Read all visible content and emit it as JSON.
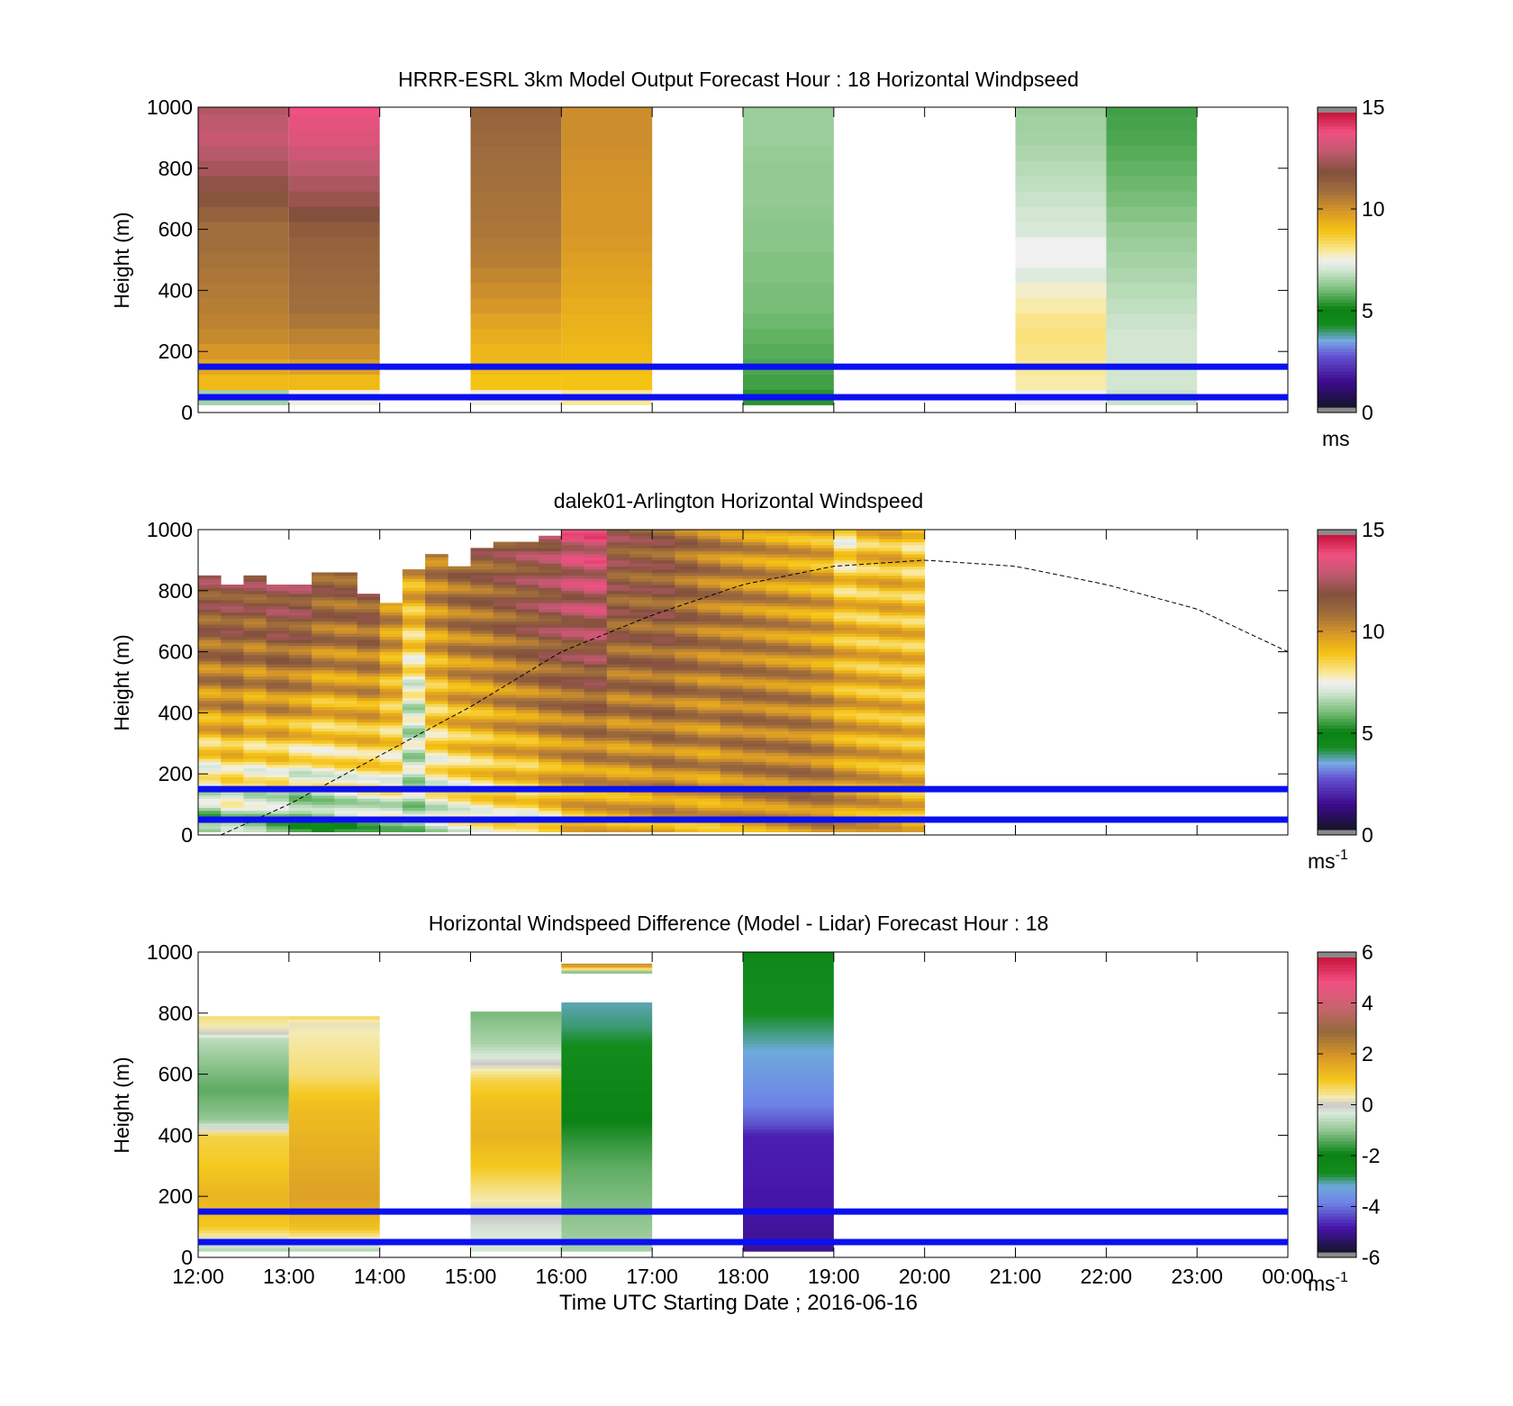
{
  "chart_data": [
    {
      "type": "heatmap",
      "title": "HRRR-ESRL 3km Model Output   Forecast Hour : 18 Horizontal Windpseed",
      "ylabel": "Height (m)",
      "xlabel": "",
      "ylim": [
        0,
        1000
      ],
      "yticks": [
        0,
        200,
        400,
        600,
        800,
        1000
      ],
      "xlim_hours": [
        12,
        24
      ],
      "clim": [
        0,
        15
      ],
      "cticks": [
        0,
        5,
        10,
        15
      ],
      "cbar_unit": "ms",
      "cbar_exp": "",
      "reference_lines_m": [
        150,
        50
      ],
      "columns": [
        {
          "t0": 12,
          "t1": 13,
          "heights": [
            25,
            50,
            75,
            100,
            150,
            200,
            250,
            300,
            350,
            400,
            450,
            500,
            550,
            600,
            700,
            800,
            900,
            1000
          ],
          "values": [
            4.5,
            6.5,
            8.5,
            9.2,
            9.6,
            10.0,
            10.3,
            10.5,
            10.6,
            10.7,
            10.8,
            10.9,
            11.0,
            11.0,
            11.8,
            12.6,
            13.2,
            12.8
          ]
        },
        {
          "t0": 13,
          "t1": 14,
          "heights": [
            25,
            50,
            75,
            100,
            150,
            200,
            250,
            300,
            350,
            400,
            450,
            500,
            550,
            600,
            700,
            800,
            900,
            1000
          ],
          "values": [
            4.5,
            7.6,
            8.6,
            9.2,
            9.8,
            10.2,
            10.5,
            10.8,
            11.0,
            11.1,
            11.2,
            11.3,
            11.4,
            11.6,
            12.4,
            13.0,
            13.6,
            14.0
          ]
        },
        {
          "t0": 15,
          "t1": 16,
          "heights": [
            25,
            50,
            75,
            100,
            150,
            200,
            250,
            300,
            350,
            400,
            450,
            500,
            550,
            600,
            700,
            800,
            900,
            1000
          ],
          "values": [
            7.2,
            7.6,
            8.5,
            9.0,
            9.2,
            9.3,
            9.5,
            9.7,
            10.0,
            10.2,
            10.4,
            10.6,
            10.7,
            10.8,
            10.9,
            11.0,
            11.2,
            11.4
          ]
        },
        {
          "t0": 16,
          "t1": 17,
          "heights": [
            25,
            50,
            75,
            100,
            150,
            200,
            250,
            300,
            350,
            400,
            450,
            500,
            550,
            600,
            700,
            800,
            900,
            1000
          ],
          "values": [
            2.8,
            8.0,
            8.8,
            9.0,
            9.1,
            9.2,
            9.3,
            9.4,
            9.5,
            9.6,
            9.7,
            9.8,
            9.9,
            10.0,
            10.0,
            10.1,
            10.2,
            10.2
          ]
        },
        {
          "t0": 18,
          "t1": 19,
          "heights": [
            25,
            50,
            75,
            100,
            150,
            200,
            250,
            300,
            350,
            400,
            450,
            500,
            550,
            600,
            700,
            800,
            900,
            1000
          ],
          "values": [
            5.2,
            5.3,
            5.4,
            5.5,
            5.6,
            5.7,
            5.8,
            5.9,
            6.0,
            6.0,
            6.1,
            6.1,
            6.2,
            6.2,
            6.3,
            6.3,
            6.4,
            6.4
          ]
        },
        {
          "t0": 21,
          "t1": 22,
          "heights": [
            25,
            50,
            75,
            100,
            150,
            200,
            250,
            300,
            350,
            400,
            450,
            500,
            550,
            600,
            700,
            800,
            900,
            1000
          ],
          "values": [
            7.3,
            7.5,
            7.8,
            7.9,
            8.0,
            8.1,
            8.2,
            8.1,
            7.9,
            7.7,
            7.2,
            7.5,
            7.5,
            7.1,
            6.9,
            6.7,
            6.5,
            6.4
          ]
        },
        {
          "t0": 22,
          "t1": 23,
          "heights": [
            25,
            50,
            75,
            100,
            150,
            200,
            250,
            300,
            350,
            400,
            450,
            500,
            550,
            600,
            700,
            800,
            900,
            1000
          ],
          "values": [
            6.8,
            6.9,
            7.0,
            7.0,
            7.0,
            7.0,
            7.0,
            6.9,
            6.8,
            6.7,
            6.6,
            6.5,
            6.4,
            6.3,
            6.0,
            5.8,
            5.6,
            5.5
          ]
        }
      ]
    },
    {
      "type": "heatmap",
      "title": "dalek01-Arlington  Horizontal Windspeed",
      "ylabel": "Height (m)",
      "xlabel": "",
      "ylim": [
        0,
        1000
      ],
      "yticks": [
        0,
        200,
        400,
        600,
        800,
        1000
      ],
      "xlim_hours": [
        12,
        24
      ],
      "clim": [
        0,
        15
      ],
      "cticks": [
        0,
        5,
        10,
        15
      ],
      "cbar_unit": "ms",
      "cbar_exp": "-1",
      "reference_lines_m": [
        150,
        50
      ],
      "profile_start_hour": 12.0,
      "profile_step_hour": 0.25,
      "profile_top_m": [
        850,
        820,
        850,
        820,
        820,
        860,
        860,
        790,
        760,
        870,
        920,
        880,
        940,
        960,
        960,
        980,
        1000,
        1000,
        1000,
        1000,
        1000,
        1000,
        1000,
        1000,
        1000,
        1000,
        1000,
        1000,
        1000,
        1000,
        1000,
        1000
      ],
      "profile_anchor_heights_m": [
        0,
        150,
        400,
        700,
        1000
      ],
      "profile_anchor_values": [
        [
          5.5,
          7.2,
          9.8,
          11.5,
          12.8
        ],
        [
          6.0,
          7.8,
          10.2,
          11.8,
          12.5
        ],
        [
          5.8,
          7.4,
          9.6,
          11.4,
          13.0
        ],
        [
          5.2,
          7.6,
          10.0,
          12.0,
          12.4
        ],
        [
          4.8,
          7.0,
          9.7,
          11.8,
          12.9
        ],
        [
          4.6,
          7.4,
          9.2,
          11.2,
          12.0
        ],
        [
          5.4,
          7.6,
          9.4,
          11.0,
          12.2
        ],
        [
          5.8,
          7.8,
          9.6,
          11.4,
          12.0
        ],
        [
          6.2,
          7.8,
          9.0,
          10.2,
          11.0
        ],
        [
          6.4,
          6.8,
          7.0,
          9.0,
          10.5
        ],
        [
          7.0,
          7.6,
          8.8,
          10.2,
          11.0
        ],
        [
          7.4,
          8.0,
          9.4,
          10.8,
          11.4
        ],
        [
          7.6,
          8.4,
          9.6,
          11.0,
          11.8
        ],
        [
          7.8,
          8.8,
          10.0,
          11.4,
          12.0
        ],
        [
          7.6,
          8.6,
          10.2,
          11.8,
          12.4
        ],
        [
          8.0,
          9.2,
          10.6,
          12.2,
          12.6
        ],
        [
          9.0,
          9.6,
          10.8,
          12.6,
          13.4
        ],
        [
          9.2,
          9.8,
          11.2,
          12.8,
          13.6
        ],
        [
          9.2,
          9.8,
          10.6,
          11.6,
          12.0
        ],
        [
          9.4,
          10.0,
          10.8,
          11.4,
          11.8
        ],
        [
          9.6,
          10.4,
          11.0,
          11.6,
          11.6
        ],
        [
          9.4,
          10.2,
          10.6,
          11.2,
          11.0
        ],
        [
          9.4,
          10.0,
          10.4,
          10.8,
          10.6
        ],
        [
          9.6,
          10.4,
          10.8,
          10.6,
          10.2
        ],
        [
          9.8,
          10.6,
          10.8,
          10.4,
          10.0
        ],
        [
          10.0,
          10.6,
          10.6,
          10.2,
          9.8
        ],
        [
          10.2,
          10.8,
          10.6,
          10.0,
          9.6
        ],
        [
          10.4,
          10.6,
          10.2,
          9.8,
          9.4
        ],
        [
          9.8,
          10.0,
          9.6,
          9.2,
          8.0
        ],
        [
          9.6,
          9.8,
          9.4,
          9.0,
          9.0
        ],
        [
          9.4,
          9.6,
          9.4,
          9.2,
          9.2
        ],
        [
          9.0,
          9.4,
          9.2,
          9.0,
          8.6
        ]
      ],
      "boundary_layer_curve": {
        "hours": [
          12.25,
          13.0,
          14.0,
          15.0,
          16.0,
          17.0,
          18.0,
          19.0,
          20.0,
          21.0,
          22.0,
          23.0,
          24.0
        ],
        "height_m": [
          0,
          100,
          260,
          420,
          600,
          720,
          820,
          880,
          900,
          880,
          820,
          740,
          600
        ]
      }
    },
    {
      "type": "heatmap",
      "title": "Horizontal Windspeed Difference (Model - Lidar) Forecast Hour : 18",
      "ylabel": "Height (m)",
      "xlabel": "Time UTC  Starting Date ; 2016-06-16",
      "ylim": [
        0,
        1000
      ],
      "yticks": [
        0,
        200,
        400,
        600,
        800,
        1000
      ],
      "xlim_hours": [
        12,
        24
      ],
      "xtick_labels": [
        "12:00",
        "13:00",
        "14:00",
        "15:00",
        "16:00",
        "17:00",
        "18:00",
        "19:00",
        "20:00",
        "21:00",
        "22:00",
        "23:00",
        "00:00"
      ],
      "clim": [
        -6,
        6
      ],
      "cticks": [
        -6,
        -4,
        -2,
        0,
        2,
        4,
        6
      ],
      "cbar_unit": "ms",
      "cbar_exp": "-1",
      "reference_lines_m": [
        150,
        50
      ],
      "columns": [
        {
          "t0": 12,
          "t1": 13,
          "top": 790,
          "bottom": 20,
          "heights": [
            20,
            100,
            200,
            300,
            400,
            420,
            450,
            550,
            650,
            720,
            730,
            790
          ],
          "values": [
            -0.8,
            1.0,
            1.4,
            1.0,
            0.8,
            0.0,
            -1.0,
            -1.4,
            -1.0,
            -0.6,
            0.0,
            0.6
          ]
        },
        {
          "t0": 13,
          "t1": 14,
          "top": 790,
          "bottom": 20,
          "heights": [
            20,
            100,
            200,
            300,
            400,
            500,
            600,
            700,
            770,
            790
          ],
          "values": [
            -0.8,
            1.2,
            1.8,
            1.6,
            1.4,
            1.2,
            0.6,
            0.4,
            0.2,
            0.8
          ]
        },
        {
          "t0": 15,
          "t1": 16,
          "top": 805,
          "bottom": 20,
          "heights": [
            20,
            100,
            200,
            300,
            400,
            500,
            580,
            650,
            700,
            800
          ],
          "values": [
            -0.4,
            -0.2,
            0.4,
            1.0,
            1.4,
            1.2,
            0.8,
            -0.2,
            -0.8,
            -1.2
          ]
        },
        {
          "t0": 16,
          "t1": 17,
          "top": 835,
          "bottom": 20,
          "heights": [
            20,
            100,
            200,
            300,
            400,
            500,
            600,
            700,
            750,
            835
          ],
          "values": [
            -0.8,
            -1.0,
            -1.2,
            -1.4,
            -1.8,
            -2.2,
            -2.4,
            -2.8,
            -3.0,
            -3.2
          ]
        },
        {
          "t0": 16,
          "t1": 17,
          "top": 962,
          "bottom": 930,
          "heights": [
            930,
            950,
            962
          ],
          "values": [
            -1.8,
            1.4,
            2.4
          ]
        },
        {
          "t0": 18,
          "t1": 19,
          "top": 1000,
          "bottom": 20,
          "heights": [
            20,
            200,
            400,
            430,
            500,
            550,
            600,
            700,
            800,
            900,
            1000
          ],
          "values": [
            -5.2,
            -5.0,
            -4.9,
            -4.5,
            -4.0,
            -3.8,
            -3.6,
            -3.2,
            -2.8,
            -2.6,
            -2.4
          ]
        }
      ]
    }
  ]
}
